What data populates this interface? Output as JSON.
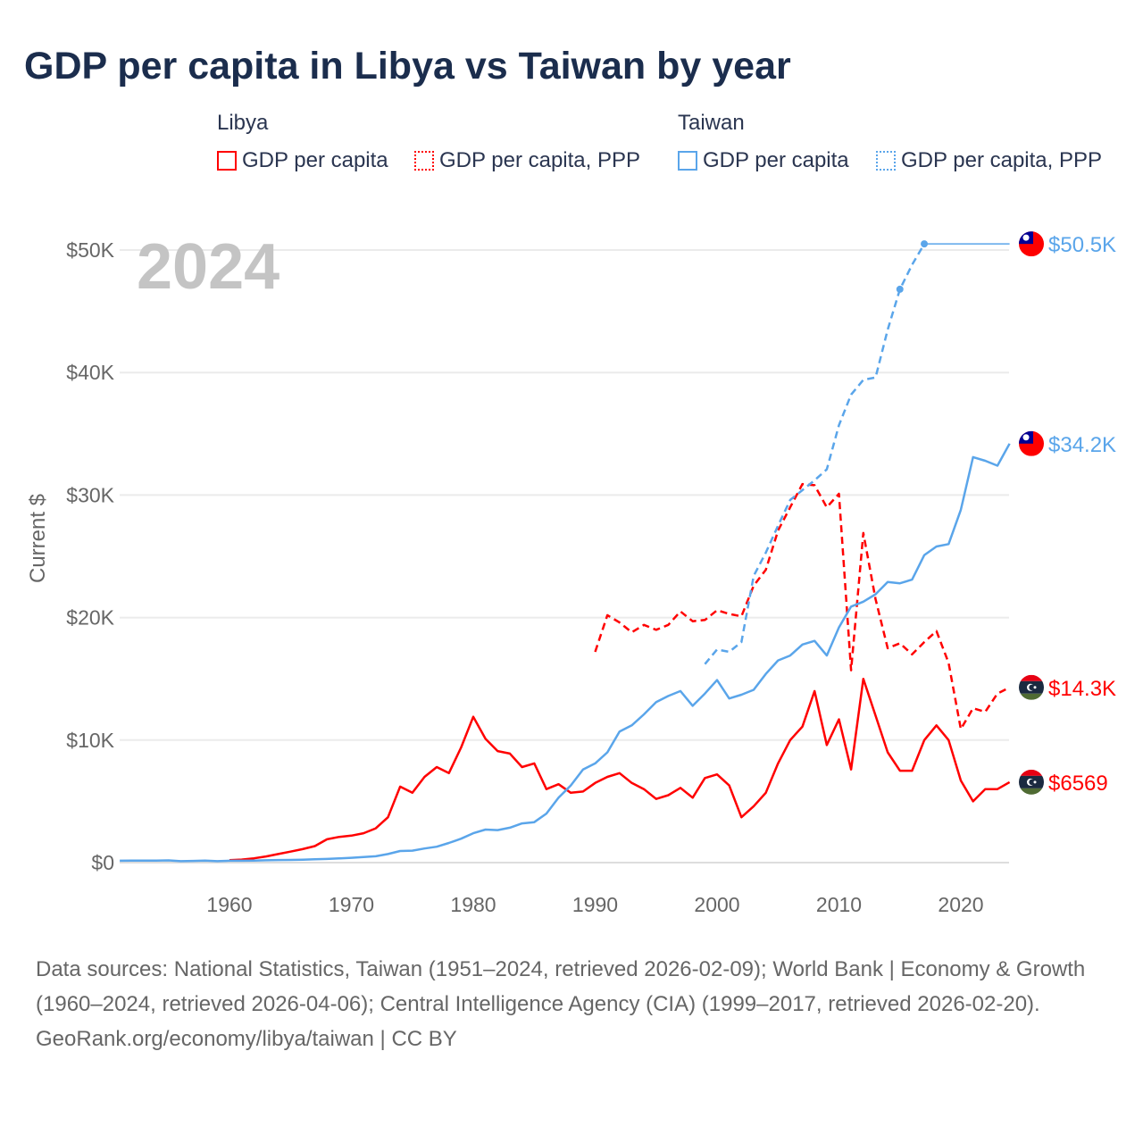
{
  "title": "GDP per capita in Libya vs Taiwan by year",
  "legend": {
    "groups": [
      {
        "name": "Libya",
        "items": [
          {
            "label": "GDP per capita",
            "style": "solid",
            "color": "#ff0000"
          },
          {
            "label": "GDP per capita, PPP",
            "style": "dotted",
            "color": "#ff0000"
          }
        ]
      },
      {
        "name": "Taiwan",
        "items": [
          {
            "label": "GDP per capita",
            "style": "solid",
            "color": "#5aa5ea"
          },
          {
            "label": "GDP per capita, PPP",
            "style": "dotted",
            "color": "#5aa5ea"
          }
        ]
      }
    ]
  },
  "year_label": "2024",
  "end_labels": [
    "$50.5K",
    "$34.2K",
    "$14.3K",
    "$6569"
  ],
  "chart_data": {
    "type": "line",
    "title": "GDP per capita in Libya vs Taiwan by year",
    "ylabel": "Current $",
    "xlim": [
      1951,
      2024
    ],
    "ylim": [
      0,
      52000
    ],
    "x_ticks": [
      "1960",
      "1970",
      "1980",
      "1990",
      "2000",
      "2010",
      "2020"
    ],
    "y_ticks": [
      "$0",
      "$10K",
      "$20K",
      "$30K",
      "$40K",
      "$50K"
    ],
    "grid": true,
    "series": [
      {
        "name": "Libya GDP per capita",
        "color": "#ff0000",
        "dash": "solid",
        "start": 1960,
        "values": [
          0.2,
          0.25,
          0.35,
          0.5,
          0.7,
          0.9,
          1.1,
          1.35,
          1.9,
          2.1,
          2.2,
          2.4,
          2.8,
          3.7,
          6.2,
          5.7,
          7.0,
          7.8,
          7.3,
          9.4,
          11.9,
          10.1,
          9.1,
          8.9,
          7.8,
          8.1,
          6.0,
          6.4,
          5.7,
          5.8,
          6.5,
          7.0,
          7.3,
          6.5,
          6.0,
          5.2,
          5.5,
          6.1,
          5.3,
          6.9,
          7.2,
          6.3,
          3.7,
          4.6,
          5.7,
          8.1,
          10.0,
          11.1,
          14.0,
          9.6,
          11.7,
          7.6,
          15.0,
          12.0,
          9.0,
          7.5,
          7.5,
          10.0,
          11.2,
          10.0,
          6.7,
          5.0,
          6.0,
          6.0,
          6.569
        ]
      },
      {
        "name": "Libya GDP per capita, PPP",
        "color": "#ff0000",
        "dash": "dashed",
        "start": 1990,
        "values": [
          17.2,
          20.2,
          19.6,
          18.8,
          19.4,
          19.0,
          19.4,
          20.5,
          19.7,
          19.8,
          20.6,
          20.3,
          20.1,
          22.6,
          23.9,
          27.1,
          29.0,
          30.9,
          30.8,
          29.0,
          30.1,
          15.7,
          26.9,
          21.5,
          17.5,
          17.9,
          17.0,
          18.0,
          18.9,
          16.3,
          10.9,
          12.6,
          12.3,
          13.8,
          14.3
        ]
      },
      {
        "name": "Taiwan GDP per capita",
        "color": "#5aa5ea",
        "dash": "solid",
        "start": 1951,
        "values": [
          0.15,
          0.17,
          0.17,
          0.17,
          0.18,
          0.12,
          0.14,
          0.16,
          0.12,
          0.15,
          0.15,
          0.17,
          0.19,
          0.21,
          0.22,
          0.24,
          0.27,
          0.3,
          0.34,
          0.39,
          0.45,
          0.52,
          0.7,
          0.95,
          0.98,
          1.15,
          1.3,
          1.6,
          1.95,
          2.4,
          2.7,
          2.65,
          2.85,
          3.2,
          3.3,
          4.0,
          5.3,
          6.3,
          7.6,
          8.1,
          9.0,
          10.7,
          11.2,
          12.1,
          13.1,
          13.6,
          14.0,
          12.8,
          13.8,
          14.9,
          13.4,
          13.7,
          14.1,
          15.4,
          16.5,
          16.9,
          17.8,
          18.1,
          16.9,
          19.2,
          20.9,
          21.3,
          21.9,
          22.9,
          22.8,
          23.1,
          25.1,
          25.8,
          26.0,
          28.8,
          33.1,
          32.8,
          32.4,
          34.2
        ]
      },
      {
        "name": "Taiwan GDP per capita, PPP",
        "color": "#5aa5ea",
        "dash": "dashed",
        "start": 1999,
        "values": [
          16.2,
          17.4,
          17.2,
          18.0,
          23.4,
          25.3,
          27.5,
          29.6,
          30.4,
          31.2,
          32.1,
          35.7,
          38.2,
          39.4,
          39.6,
          43.5,
          46.8,
          48.8,
          50.5
        ],
        "carry_forward_to": 2024
      }
    ],
    "value_unit": "thousand USD"
  },
  "footer": {
    "sources": "Data sources: National Statistics, Taiwan (1951–2024, retrieved 2026-02-09); World Bank | Economy & Growth (1960–2024, retrieved 2026-04-06); Central Intelligence Agency (CIA) (1999–2017, retrieved 2026-02-20).",
    "credit": "GeoRank.org/economy/libya/taiwan | CC BY"
  }
}
